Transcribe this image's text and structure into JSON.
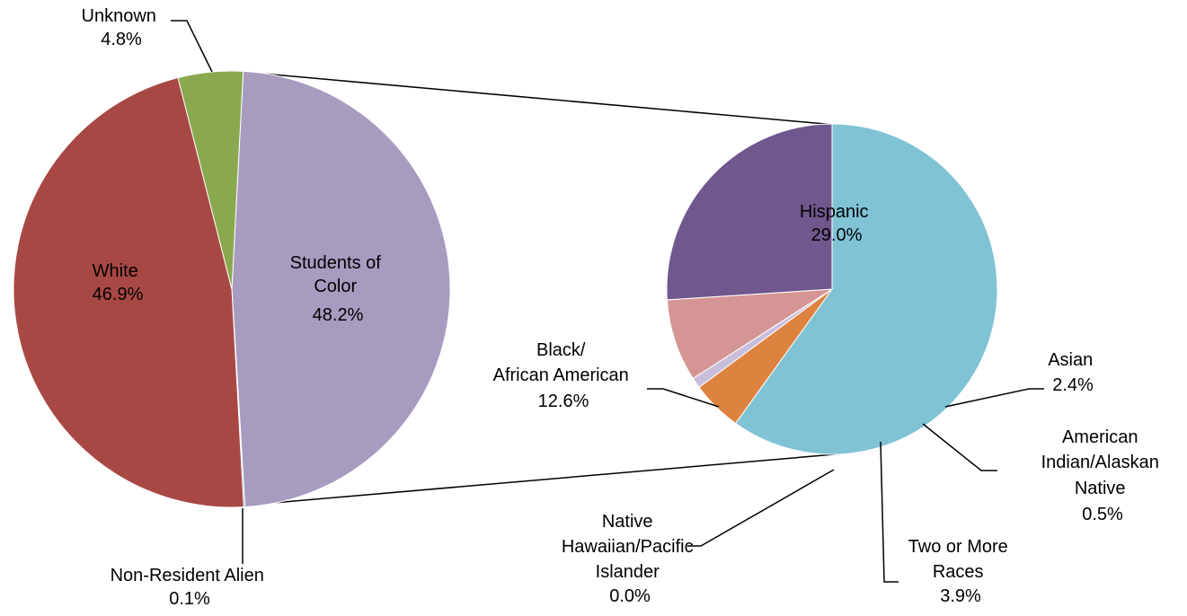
{
  "chart_data": {
    "type": "pie",
    "subtype": "pie-of-pie",
    "primary": {
      "slices": [
        {
          "label_lines": [
            "Students of",
            "Color"
          ],
          "value_label": "48.2%",
          "value": 48.2,
          "color": "#a89bc0"
        },
        {
          "label_lines": [
            "Non-Resident Alien"
          ],
          "value_label": "0.1%",
          "value": 0.1,
          "color": "#4a7ebb"
        },
        {
          "label_lines": [
            "White"
          ],
          "value_label": "46.9%",
          "value": 46.9,
          "color": "#a84845"
        },
        {
          "label_lines": [
            "Unknown"
          ],
          "value_label": "4.8%",
          "value": 4.8,
          "color": "#8aa84e"
        }
      ]
    },
    "secondary": {
      "slices": [
        {
          "label_lines": [
            "Hispanic"
          ],
          "value_label": "29.0%",
          "value": 29.0,
          "color": "#7fc3d5"
        },
        {
          "label_lines": [
            "Asian"
          ],
          "value_label": "2.4%",
          "value": 2.4,
          "color": "#de8240"
        },
        {
          "label_lines": [
            "American",
            "Indian/Alaskan",
            "Native"
          ],
          "value_label": "0.5%",
          "value": 0.5,
          "color": "#c8bedc"
        },
        {
          "label_lines": [
            "Two or More",
            "Races"
          ],
          "value_label": "3.9%",
          "value": 3.9,
          "color": "#d49594"
        },
        {
          "label_lines": [
            "Native",
            "Hawaiian/Pacific",
            "Islander"
          ],
          "value_label": "0.0%",
          "value": 0.0,
          "color": "#4a7ebb"
        },
        {
          "label_lines": [
            "Black/",
            "African American"
          ],
          "value_label": "12.6%",
          "value": 12.6,
          "color": "#70578d"
        }
      ]
    }
  }
}
